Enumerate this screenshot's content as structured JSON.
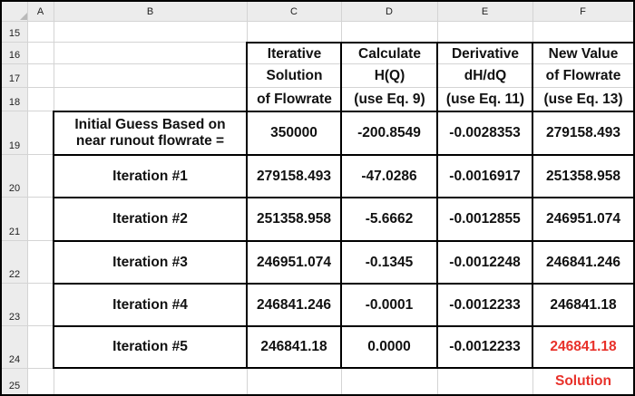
{
  "column_headers": [
    "A",
    "B",
    "C",
    "D",
    "E",
    "F"
  ],
  "row_headers": [
    "15",
    "16",
    "17",
    "18",
    "19",
    "20",
    "21",
    "22",
    "23",
    "24",
    "25"
  ],
  "table": {
    "header": {
      "C": [
        "Iterative",
        "Solution",
        "of Flowrate"
      ],
      "D": [
        "Calculate",
        "H(Q)",
        "(use Eq. 9)"
      ],
      "E": [
        "Derivative",
        "dH/dQ",
        "(use Eq. 11)"
      ],
      "F": [
        "New Value",
        "of Flowrate",
        "(use Eq. 13)"
      ]
    },
    "rows": [
      {
        "label_lines": [
          "Initial Guess Based on",
          "near runout flowrate ="
        ],
        "C": "350000",
        "D": "-200.8549",
        "E": "-0.0028353",
        "F": "279158.493"
      },
      {
        "label": "Iteration #1",
        "C": "279158.493",
        "D": "-47.0286",
        "E": "-0.0016917",
        "F": "251358.958"
      },
      {
        "label": "Iteration #2",
        "C": "251358.958",
        "D": "-5.6662",
        "E": "-0.0012855",
        "F": "246951.074"
      },
      {
        "label": "Iteration #3",
        "C": "246951.074",
        "D": "-0.1345",
        "E": "-0.0012248",
        "F": "246841.246"
      },
      {
        "label": "Iteration #4",
        "C": "246841.246",
        "D": "-0.0001",
        "E": "-0.0012233",
        "F": "246841.18"
      },
      {
        "label": "Iteration #5",
        "C": "246841.18",
        "D": "0.0000",
        "E": "-0.0012233",
        "F": "246841.18"
      }
    ],
    "solution_label": "Solution"
  },
  "colors": {
    "header_bg": "#ececec",
    "gridline": "#d4d4d4",
    "border": "#000000",
    "highlight_red": "#e8312a"
  }
}
